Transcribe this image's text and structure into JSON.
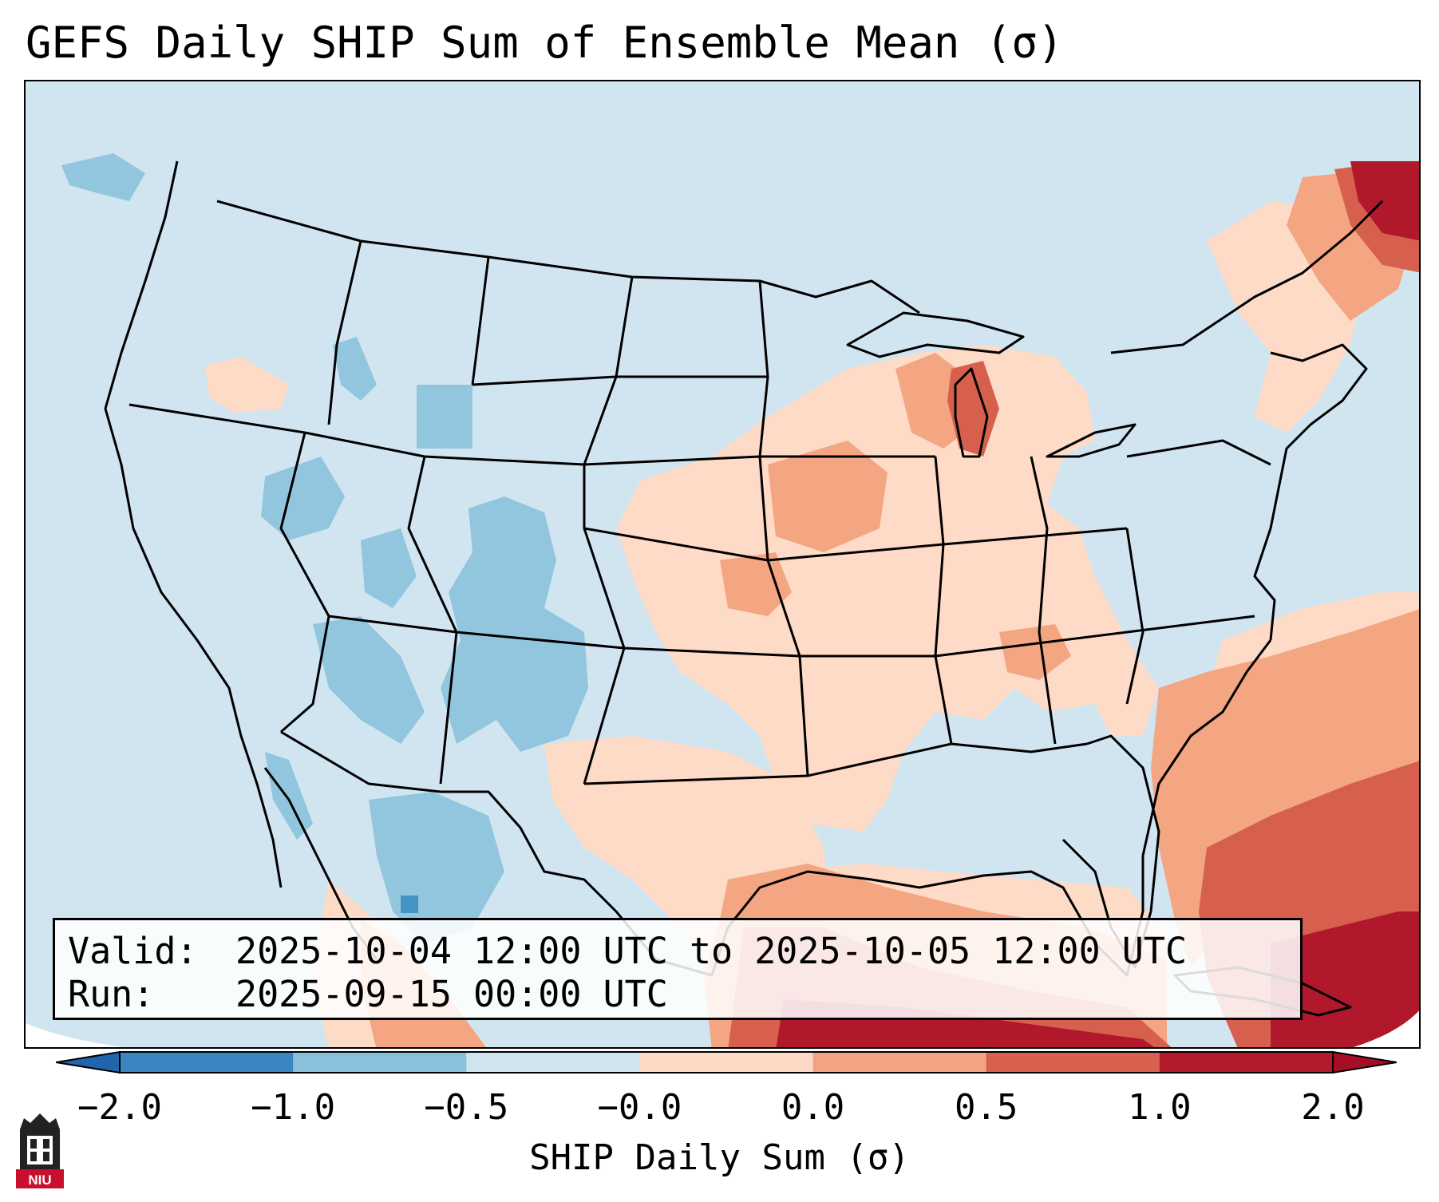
{
  "title": "GEFS Daily SHIP Sum of Ensemble Mean (σ)",
  "info": {
    "valid_key": "Valid:",
    "valid_value": "2025-10-04 12:00 UTC to 2025-10-05 12:00 UTC",
    "run_key": "Run:",
    "run_value": "2025-09-15 00:00 UTC"
  },
  "colorbar": {
    "label": "SHIP Daily Sum (σ)",
    "ticks": [
      "−2.0",
      "−1.0",
      "−0.5",
      "−0.0",
      "0.0",
      "0.5",
      "1.0",
      "2.0"
    ],
    "bin_colors": [
      "#3a86c0",
      "#8bc0dd",
      "#d0e4f0",
      "#fcd9c5",
      "#f1a383",
      "#d8604f",
      "#b31b2c"
    ],
    "under_color": "#2166ac",
    "over_color": "#a50f26"
  },
  "logo": {
    "text": "NIU"
  },
  "colors": {
    "ocean": "#d1e5f0",
    "neutral_land": "#d1e5f0",
    "light_blue": "#92c5de",
    "mid_blue": "#4393c3",
    "light_red": "#fddbc7",
    "mid_red": "#f4a582",
    "strong_red": "#d6604d",
    "deep_red": "#b2182b",
    "coastline": "#000000"
  }
}
